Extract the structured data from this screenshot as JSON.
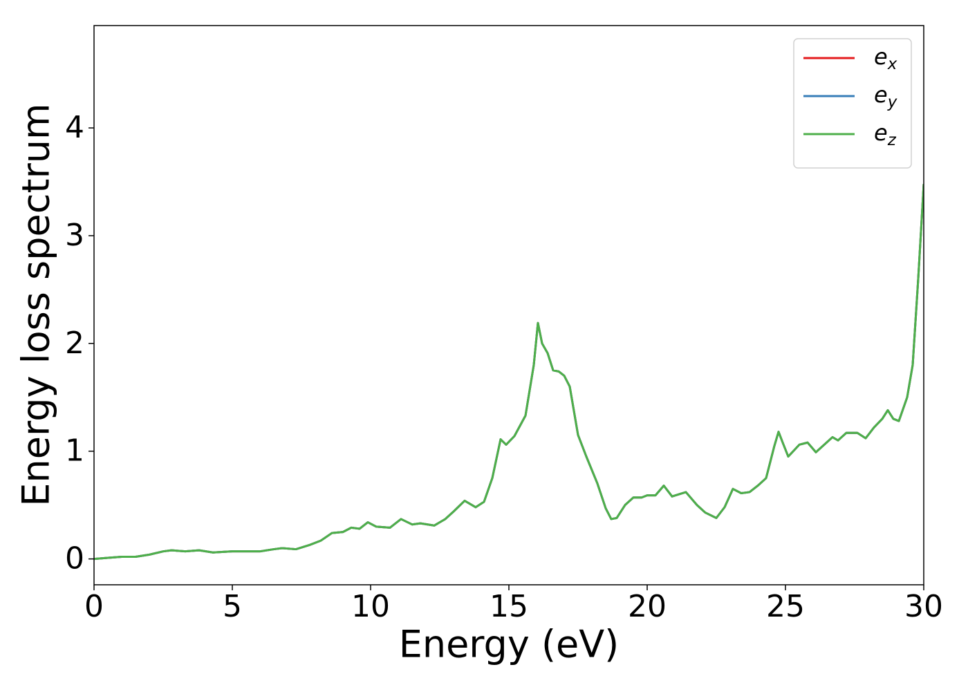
{
  "chart_data": {
    "type": "line",
    "x_label": "Energy (eV)",
    "y_label": "Energy loss spectrum",
    "x": [
      0,
      0.5,
      1,
      1.5,
      2,
      2.5,
      2.8,
      3.3,
      3.8,
      4.3,
      5,
      5.5,
      6,
      6.5,
      6.8,
      7.3,
      7.8,
      8.2,
      8.6,
      9,
      9.3,
      9.6,
      9.9,
      10.2,
      10.7,
      11.1,
      11.5,
      11.8,
      12.3,
      12.7,
      13,
      13.4,
      13.8,
      14.1,
      14.4,
      14.7,
      14.9,
      15.2,
      15.6,
      15.9,
      16.05,
      16.2,
      16.4,
      16.6,
      16.8,
      17,
      17.2,
      17.5,
      17.8,
      18.2,
      18.5,
      18.7,
      18.9,
      19.2,
      19.5,
      19.8,
      20,
      20.3,
      20.6,
      20.9,
      21.4,
      21.8,
      22.1,
      22.5,
      22.8,
      23.1,
      23.4,
      23.7,
      24,
      24.3,
      24.6,
      24.75,
      24.9,
      25.1,
      25.5,
      25.8,
      26.1,
      26.4,
      26.7,
      26.9,
      27.2,
      27.6,
      27.9,
      28.2,
      28.5,
      28.7,
      28.9,
      29.1,
      29.4,
      29.6,
      29.8,
      30
    ],
    "series": [
      {
        "name": "e_x",
        "color": "#e41a1c",
        "values": [
          0,
          0.01,
          0.02,
          0.02,
          0.04,
          0.07,
          0.08,
          0.07,
          0.08,
          0.06,
          0.07,
          0.07,
          0.07,
          0.09,
          0.1,
          0.09,
          0.13,
          0.17,
          0.24,
          0.25,
          0.29,
          0.28,
          0.34,
          0.3,
          0.29,
          0.37,
          0.32,
          0.33,
          0.31,
          0.37,
          0.44,
          0.54,
          0.48,
          0.53,
          0.75,
          1.11,
          1.06,
          1.14,
          1.33,
          1.8,
          2.19,
          2.0,
          1.91,
          1.75,
          1.74,
          1.7,
          1.6,
          1.15,
          0.95,
          0.7,
          0.47,
          0.37,
          0.38,
          0.5,
          0.57,
          0.57,
          0.59,
          0.59,
          0.68,
          0.58,
          0.62,
          0.5,
          0.43,
          0.38,
          0.48,
          0.65,
          0.61,
          0.62,
          0.68,
          0.75,
          1.05,
          1.18,
          1.08,
          0.95,
          1.06,
          1.08,
          0.99,
          1.06,
          1.13,
          1.1,
          1.17,
          1.17,
          1.12,
          1.22,
          1.3,
          1.38,
          1.3,
          1.28,
          1.5,
          1.8,
          2.6,
          3.48
        ]
      },
      {
        "name": "e_y",
        "color": "#377eb8",
        "values": [
          0,
          0.01,
          0.02,
          0.02,
          0.04,
          0.07,
          0.08,
          0.07,
          0.08,
          0.06,
          0.07,
          0.07,
          0.07,
          0.09,
          0.1,
          0.09,
          0.13,
          0.17,
          0.24,
          0.25,
          0.29,
          0.28,
          0.34,
          0.3,
          0.29,
          0.37,
          0.32,
          0.33,
          0.31,
          0.37,
          0.44,
          0.54,
          0.48,
          0.53,
          0.75,
          1.11,
          1.06,
          1.14,
          1.33,
          1.8,
          2.19,
          2.0,
          1.91,
          1.75,
          1.74,
          1.7,
          1.6,
          1.15,
          0.95,
          0.7,
          0.47,
          0.37,
          0.38,
          0.5,
          0.57,
          0.57,
          0.59,
          0.59,
          0.68,
          0.58,
          0.62,
          0.5,
          0.43,
          0.38,
          0.48,
          0.65,
          0.61,
          0.62,
          0.68,
          0.75,
          1.05,
          1.18,
          1.08,
          0.95,
          1.06,
          1.08,
          0.99,
          1.06,
          1.13,
          1.1,
          1.17,
          1.17,
          1.12,
          1.22,
          1.3,
          1.38,
          1.3,
          1.28,
          1.5,
          1.8,
          2.6,
          3.48
        ]
      },
      {
        "name": "e_z",
        "color": "#4daf4a",
        "values": [
          0,
          0.01,
          0.02,
          0.02,
          0.04,
          0.07,
          0.08,
          0.07,
          0.08,
          0.06,
          0.07,
          0.07,
          0.07,
          0.09,
          0.1,
          0.09,
          0.13,
          0.17,
          0.24,
          0.25,
          0.29,
          0.28,
          0.34,
          0.3,
          0.29,
          0.37,
          0.32,
          0.33,
          0.31,
          0.37,
          0.44,
          0.54,
          0.48,
          0.53,
          0.75,
          1.11,
          1.06,
          1.14,
          1.33,
          1.8,
          2.19,
          2.0,
          1.91,
          1.75,
          1.74,
          1.7,
          1.6,
          1.15,
          0.95,
          0.7,
          0.47,
          0.37,
          0.38,
          0.5,
          0.57,
          0.57,
          0.59,
          0.59,
          0.68,
          0.58,
          0.62,
          0.5,
          0.43,
          0.38,
          0.48,
          0.65,
          0.61,
          0.62,
          0.68,
          0.75,
          1.05,
          1.18,
          1.08,
          0.95,
          1.06,
          1.08,
          0.99,
          1.06,
          1.13,
          1.1,
          1.17,
          1.17,
          1.12,
          1.22,
          1.3,
          1.38,
          1.3,
          1.28,
          1.5,
          1.8,
          2.6,
          3.48
        ]
      }
    ],
    "xlim": [
      0,
      30
    ],
    "xticks": [
      0,
      5,
      10,
      15,
      20,
      25,
      30
    ],
    "ylim": [
      -0.24,
      4.95
    ],
    "yticks": [
      0,
      1,
      2,
      3,
      4
    ],
    "grid": false,
    "legend": "upper right"
  }
}
